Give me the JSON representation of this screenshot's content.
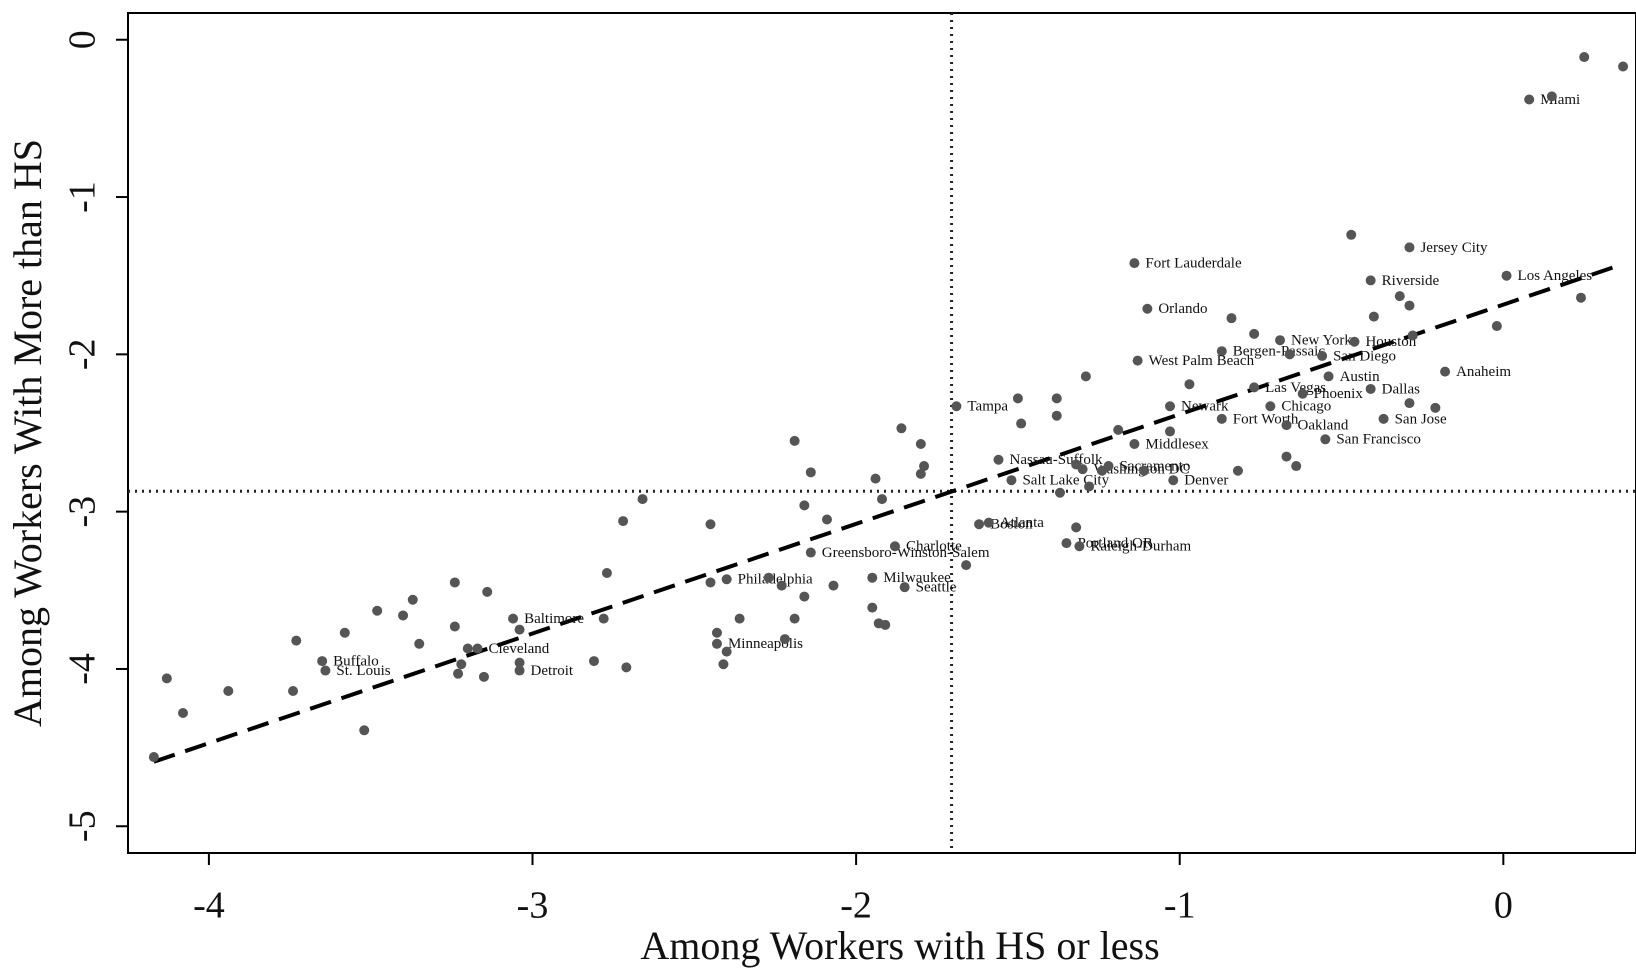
{
  "chart_data": {
    "type": "scatter",
    "xlabel": "Among Workers with HS or less",
    "ylabel": "Among Workers With More than HS",
    "xlim": [
      -4.25,
      0.41
    ],
    "ylim": [
      -5.17,
      0.17
    ],
    "xticks": [
      -4,
      -3,
      -2,
      -1,
      0
    ],
    "yticks": [
      -5,
      -4,
      -3,
      -2,
      -1,
      0
    ],
    "color": "#555555",
    "vline": -1.705,
    "hline": -2.87,
    "fit_line": {
      "x": [
        -4.17,
        0.35
      ],
      "y": [
        -4.59,
        -1.44
      ]
    },
    "x": [
      0.08,
      -0.29,
      0.01,
      -0.41,
      -1.14,
      -1.1,
      -0.69,
      -0.46,
      -0.87,
      -0.56,
      -1.13,
      -0.18,
      -0.54,
      -0.77,
      -0.62,
      -0.41,
      -1.69,
      -1.03,
      -0.72,
      -0.87,
      -0.67,
      -0.37,
      -1.14,
      -0.55,
      -1.56,
      -1.3,
      -1.22,
      -1.52,
      -1.02,
      -1.62,
      -1.59,
      -1.35,
      -1.31,
      -2.14,
      -1.88,
      -2.4,
      -1.95,
      -1.85,
      -3.06,
      -2.43,
      -3.17,
      -3.65,
      -3.64,
      -3.04,
      0.25,
      0.37,
      0.15,
      -0.47,
      -0.32,
      -0.4,
      -0.29,
      0.24,
      -0.02,
      -0.84,
      -0.77,
      -0.28,
      -0.66,
      -1.29,
      -0.97,
      -0.29,
      -0.21,
      -1.5,
      -1.38,
      -1.38,
      -1.49,
      -1.19,
      -1.03,
      -1.86,
      -1.8,
      -1.79,
      -1.8,
      -2.19,
      -2.14,
      -1.94,
      -1.92,
      -1.32,
      -1.24,
      -1.11,
      -0.82,
      -0.67,
      -0.64,
      -1.37,
      -1.28,
      -2.16,
      -2.09,
      -2.66,
      -2.72,
      -2.45,
      -1.32,
      -1.66,
      -2.77,
      -2.45,
      -2.27,
      -2.23,
      -2.16,
      -2.07,
      -2.19,
      -2.36,
      -2.78,
      -1.95,
      -1.93,
      -1.91,
      -2.22,
      -2.43,
      -2.4,
      -2.41,
      -2.81,
      -2.71,
      -3.24,
      -3.14,
      -3.37,
      -3.48,
      -3.4,
      -3.58,
      -3.73,
      -3.35,
      -3.24,
      -3.04,
      -3.2,
      -3.23,
      -3.22,
      -3.15,
      -3.04,
      -3.74,
      -3.94,
      -4.13,
      -4.08,
      -3.52,
      -4.17
    ],
    "values": [
      -0.38,
      -1.32,
      -1.5,
      -1.53,
      -1.42,
      -1.71,
      -1.91,
      -1.92,
      -1.98,
      -2.01,
      -2.04,
      -2.11,
      -2.14,
      -2.21,
      -2.25,
      -2.22,
      -2.33,
      -2.33,
      -2.33,
      -2.41,
      -2.45,
      -2.41,
      -2.57,
      -2.54,
      -2.67,
      -2.73,
      -2.71,
      -2.8,
      -2.8,
      -3.08,
      -3.07,
      -3.2,
      -3.22,
      -3.26,
      -3.22,
      -3.43,
      -3.42,
      -3.48,
      -3.68,
      -3.84,
      -3.87,
      -3.95,
      -4.01,
      -4.01,
      -0.11,
      -0.17,
      -0.36,
      -1.24,
      -1.63,
      -1.76,
      -1.69,
      -1.64,
      -1.82,
      -1.77,
      -1.87,
      -1.88,
      -2.0,
      -2.14,
      -2.19,
      -2.31,
      -2.34,
      -2.28,
      -2.28,
      -2.39,
      -2.44,
      -2.48,
      -2.49,
      -2.47,
      -2.57,
      -2.71,
      -2.76,
      -2.55,
      -2.75,
      -2.79,
      -2.92,
      -2.7,
      -2.74,
      -2.74,
      -2.74,
      -2.65,
      -2.71,
      -2.88,
      -2.84,
      -2.96,
      -3.05,
      -2.92,
      -3.06,
      -3.08,
      -3.1,
      -3.34,
      -3.39,
      -3.45,
      -3.42,
      -3.47,
      -3.54,
      -3.47,
      -3.68,
      -3.68,
      -3.68,
      -3.61,
      -3.71,
      -3.72,
      -3.81,
      -3.77,
      -3.89,
      -3.97,
      -3.95,
      -3.99,
      -3.45,
      -3.51,
      -3.56,
      -3.63,
      -3.66,
      -3.77,
      -3.82,
      -3.84,
      -3.73,
      -3.75,
      -3.87,
      -4.03,
      -3.97,
      -4.05,
      -3.96,
      -4.14,
      -4.14,
      -4.06,
      -4.28,
      -4.39,
      -4.56
    ],
    "labels": [
      "Miami",
      "Jersey City",
      "Los Angeles",
      "Riverside",
      "Fort Lauderdale",
      "Orlando",
      "New York",
      "Houston",
      "Bergen-Passaic",
      "San Diego",
      "West Palm Beach",
      "Anaheim",
      "Austin",
      "Las Vegas",
      "Phoenix",
      "Dallas",
      "Tampa",
      "Newark",
      "Chicago",
      "Fort Worth",
      "Oakland",
      "San Jose",
      "Middlesex",
      "San Francisco",
      "Nassau-Suffolk",
      "Washington DC",
      "Sacramento",
      "Salt Lake City",
      "Denver",
      "Boston",
      "Atlanta",
      "Portland OR",
      "Raleigh-Durham",
      "Greensboro-Winston-Salem",
      "Charlotte",
      "Philadelphia",
      "Milwaukee",
      "Seattle",
      "Baltimore",
      "Minneapolis",
      "Cleveland",
      "Buffalo",
      "St. Louis",
      "Detroit",
      null,
      null,
      null,
      null,
      null,
      null,
      null,
      null,
      null,
      null,
      null,
      null,
      null,
      null,
      null,
      null,
      null,
      null,
      null,
      null,
      null,
      null,
      null,
      null,
      null,
      null,
      null,
      null,
      null,
      null,
      null,
      null,
      null,
      null,
      null,
      null,
      null,
      null,
      null,
      null,
      null,
      null,
      null,
      null,
      null,
      null,
      null,
      null,
      null,
      null,
      null,
      null,
      null,
      null,
      null,
      null,
      null,
      null,
      null,
      null,
      null,
      null,
      null,
      null,
      null,
      null,
      null,
      null,
      null,
      null,
      null,
      null,
      null,
      null,
      null,
      null,
      null,
      null,
      null,
      null,
      null,
      null,
      null,
      null,
      null
    ]
  }
}
